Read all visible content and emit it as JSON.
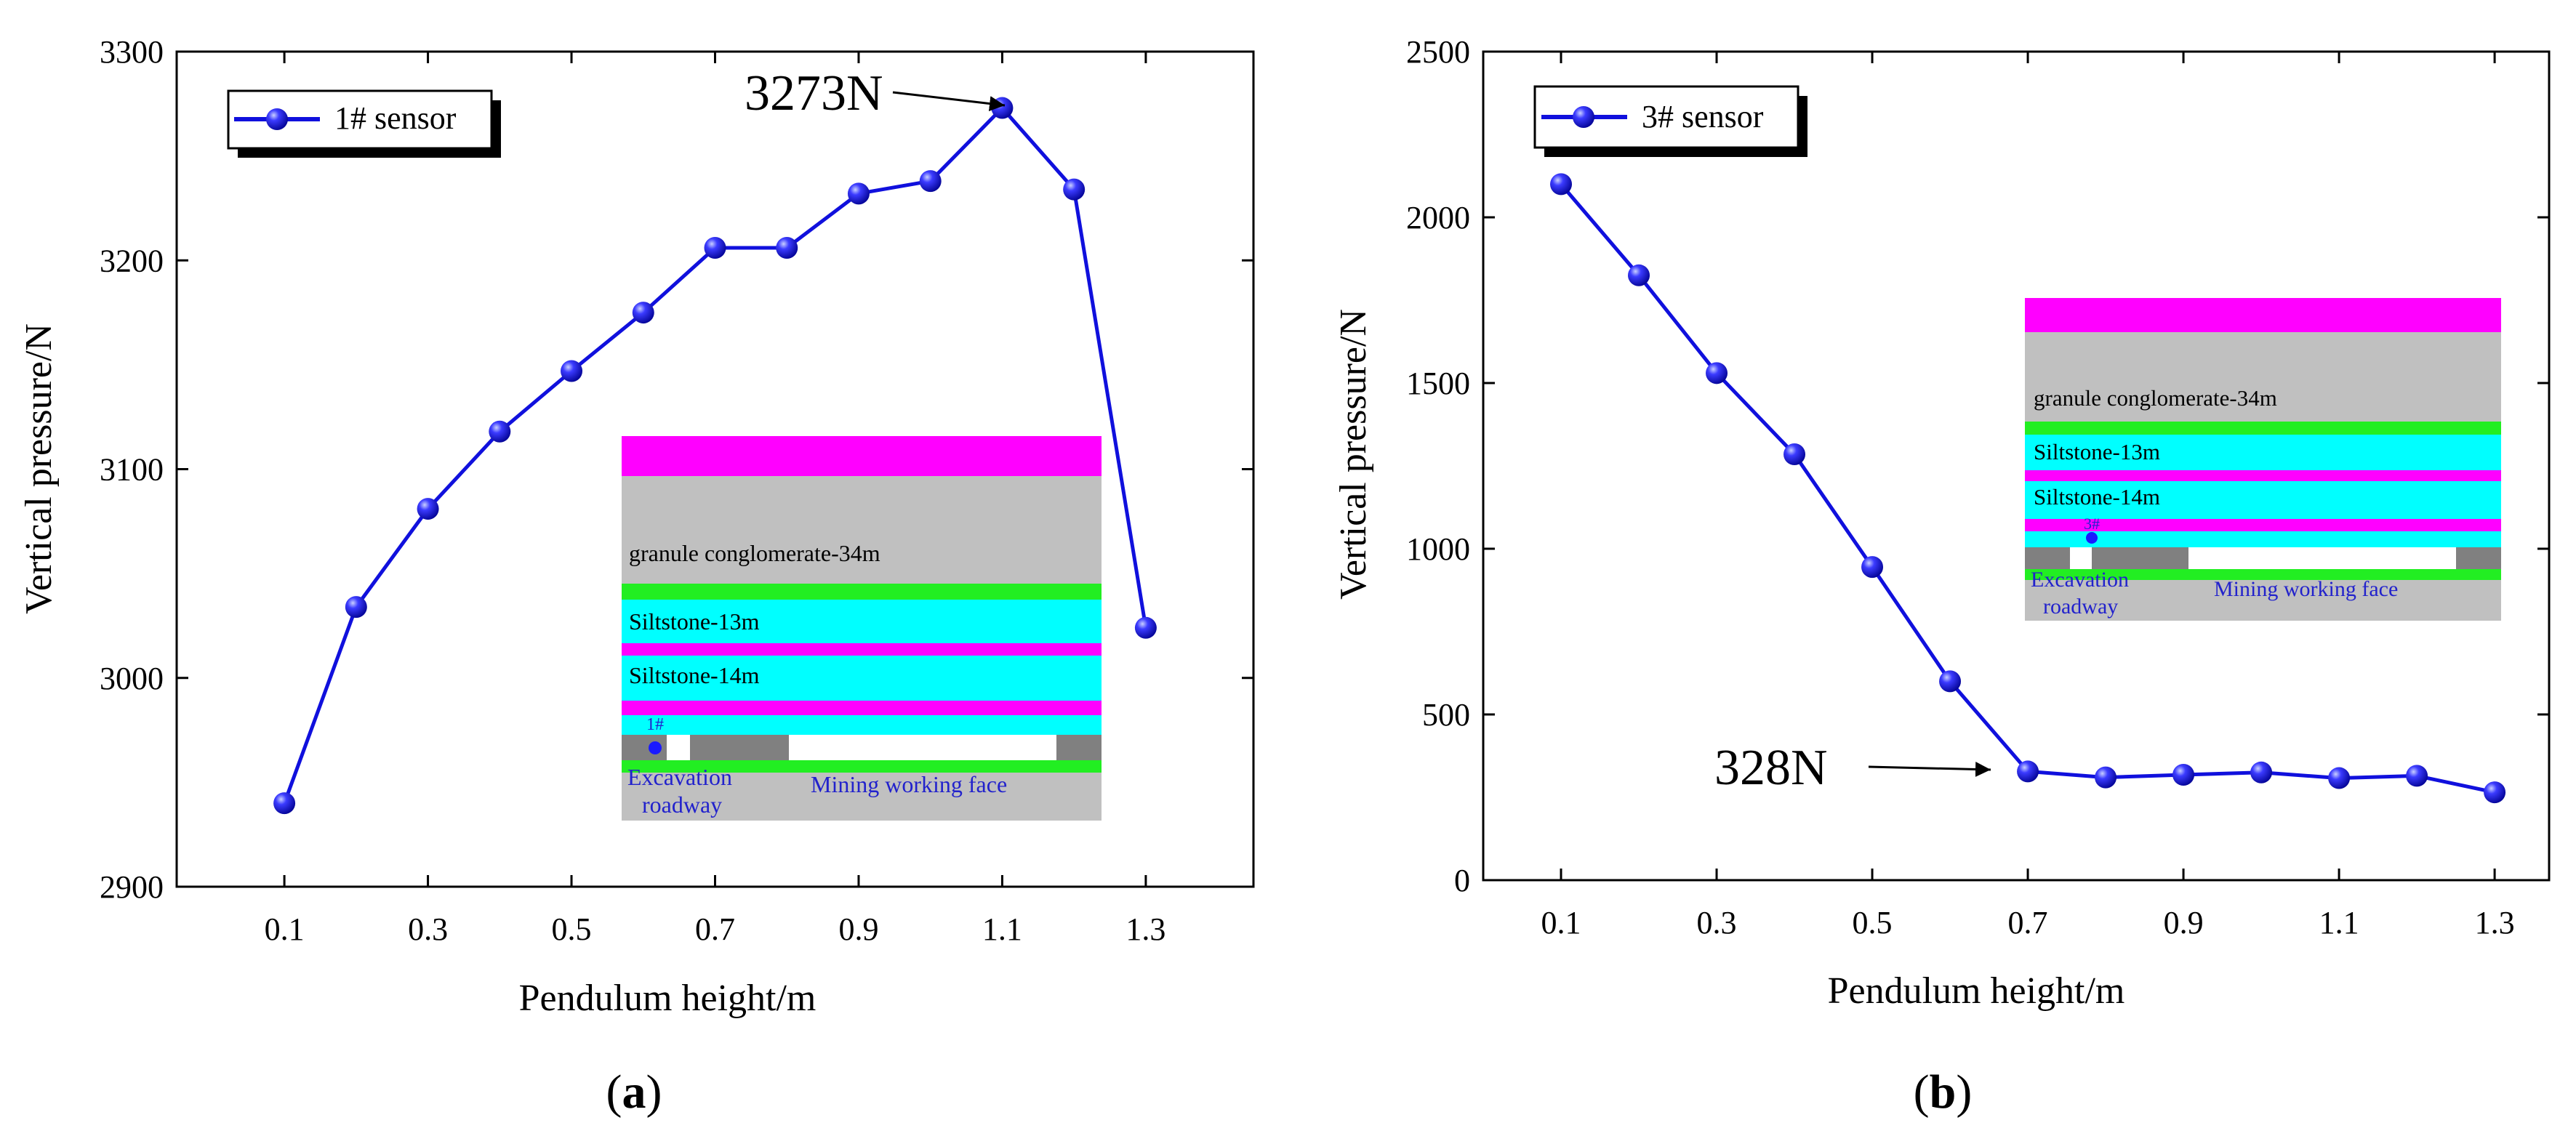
{
  "chart_data": [
    {
      "type": "line",
      "panel_label": "a",
      "xlabel": "Pendulum height/m",
      "ylabel": "Vertical pressure/N",
      "x": [
        0.1,
        0.2,
        0.3,
        0.4,
        0.5,
        0.6,
        0.7,
        0.8,
        0.9,
        1.0,
        1.1,
        1.2,
        1.3
      ],
      "series": [
        {
          "name": "1# sensor",
          "values": [
            2940,
            3034,
            3081,
            3118,
            3147,
            3175,
            3206,
            3206,
            3232,
            3238,
            3273,
            3234,
            3024
          ]
        }
      ],
      "xlim": [
        -0.05,
        1.45
      ],
      "ylim": [
        2900,
        3300
      ],
      "xticks": [
        0.1,
        0.3,
        0.5,
        0.7,
        0.9,
        1.1,
        1.3
      ],
      "xtick_labels": [
        "0.1",
        "0.3",
        "0.5",
        "0.7",
        "0.9",
        "1.1",
        "1.3"
      ],
      "yticks": [
        2900,
        3000,
        3100,
        3200,
        3300
      ],
      "ytick_labels": [
        "2900",
        "3000",
        "3100",
        "3200",
        "3300"
      ],
      "annotation": {
        "text": "3273N",
        "x": 1.1,
        "y": 3273
      },
      "legend_position": "top-left",
      "inset": {
        "layers": [
          "granule conglomerate-34m",
          "Siltstone-13m",
          "Siltstone-14m"
        ],
        "sensor_label": "1#",
        "roadway_label_1": "Excavation",
        "roadway_label_2": "roadway",
        "face_label": "Mining working face"
      }
    },
    {
      "type": "line",
      "panel_label": "b",
      "xlabel": "Pendulum height/m",
      "ylabel": "Vertical pressure/N",
      "x": [
        0.1,
        0.2,
        0.3,
        0.4,
        0.5,
        0.6,
        0.7,
        0.8,
        0.9,
        1.0,
        1.1,
        1.2,
        1.3
      ],
      "series": [
        {
          "name": "3# sensor",
          "values": [
            2100,
            1825,
            1530,
            1285,
            945,
            600,
            328,
            310,
            318,
            325,
            308,
            315,
            265
          ]
        }
      ],
      "xlim": [
        0.0,
        1.37
      ],
      "ylim": [
        0,
        2500
      ],
      "xticks": [
        0.1,
        0.3,
        0.5,
        0.7,
        0.9,
        1.1,
        1.3
      ],
      "xtick_labels": [
        "0.1",
        "0.3",
        "0.5",
        "0.7",
        "0.9",
        "1.1",
        "1.3"
      ],
      "yticks": [
        0,
        500,
        1000,
        1500,
        2000,
        2500
      ],
      "ytick_labels": [
        "0",
        "500",
        "1000",
        "1500",
        "2000",
        "2500"
      ],
      "annotation": {
        "text": "328N",
        "x": 0.7,
        "y": 328
      },
      "legend_position": "top-left",
      "inset": {
        "layers": [
          "granule conglomerate-34m",
          "Siltstone-13m",
          "Siltstone-14m"
        ],
        "sensor_label": "3#",
        "roadway_label_1": "Excavation",
        "roadway_label_2": "roadway",
        "face_label": "Mining working face"
      }
    }
  ],
  "colors": {
    "series": "#1010dd",
    "marker_fill": "#1a1aff",
    "marker_highlight": "#aab4ff",
    "magenta": "#ff00ff",
    "gray": "#c0c0c0",
    "green": "#22ee22",
    "cyan": "#00ffff",
    "dark_gray": "#808080",
    "label_blue": "#2222cc"
  }
}
